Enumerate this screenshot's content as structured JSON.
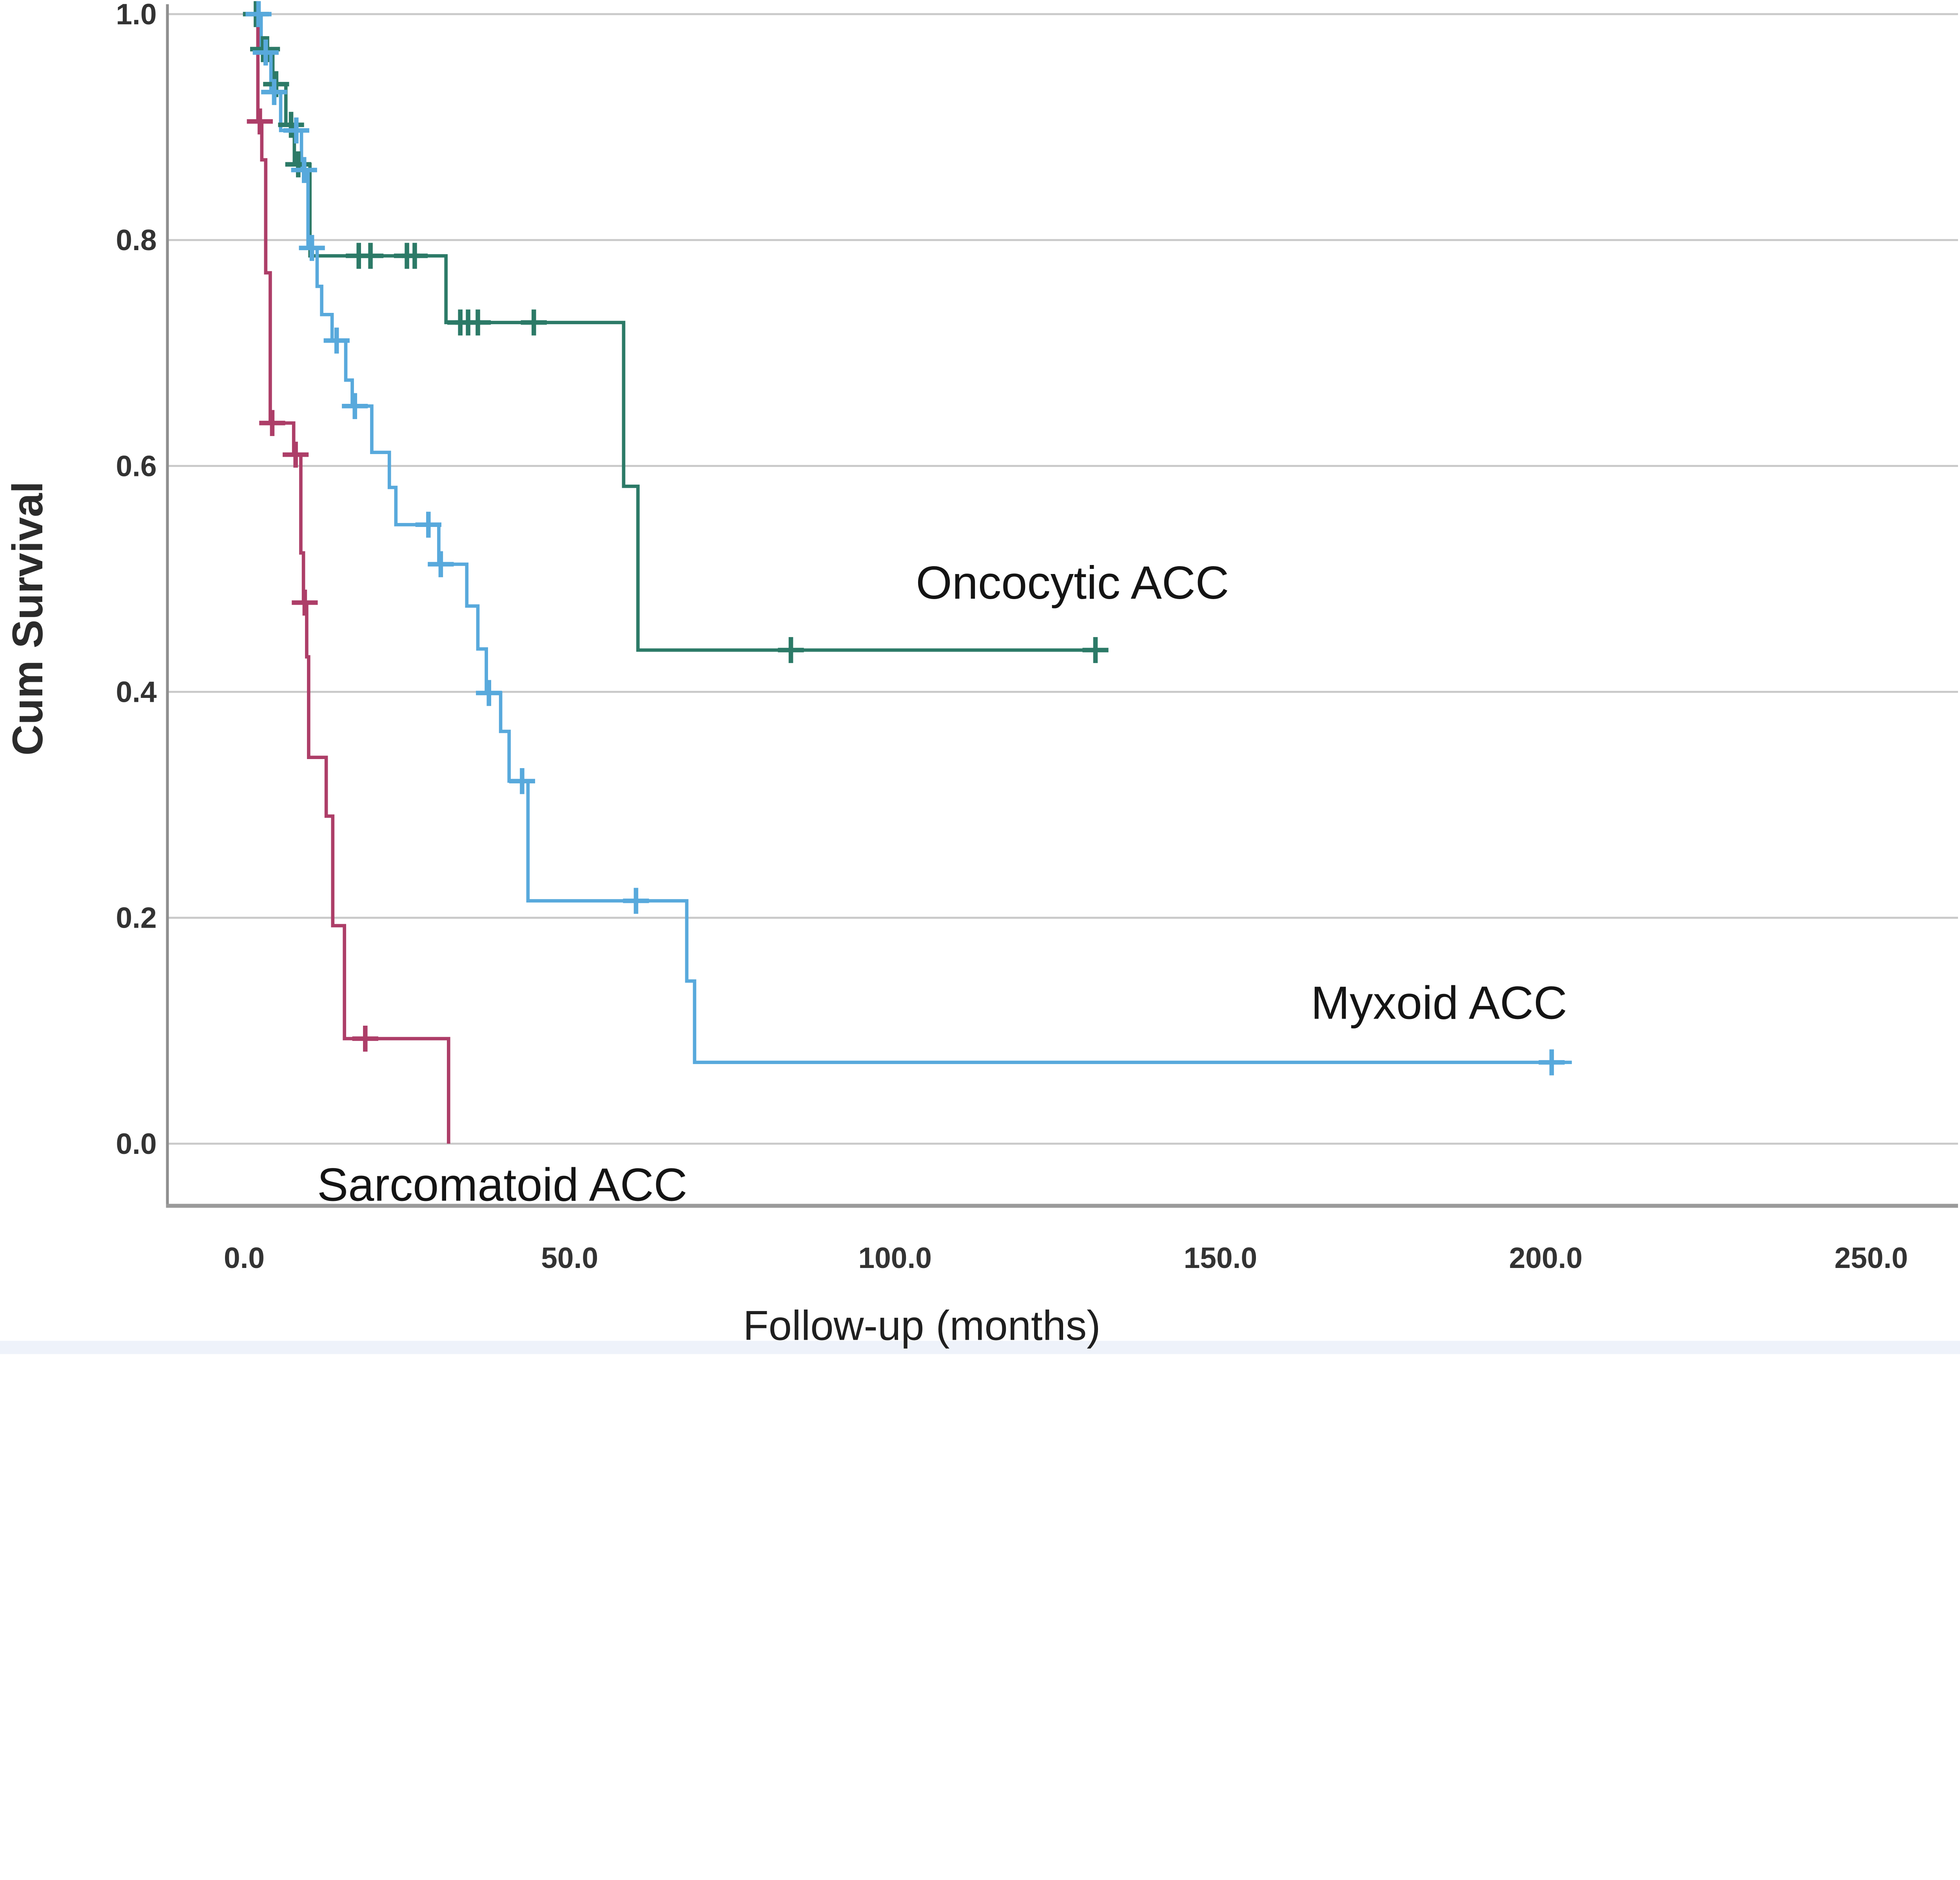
{
  "page": {
    "background_color": "#ffffff",
    "footer_strip_color": "#eef2fa"
  },
  "chart_data": {
    "type": "line",
    "subtype": "kaplan-meier-step-survival",
    "title": "",
    "xlabel": "Follow-up (months)",
    "ylabel": "Cum Survival",
    "grid": "horizontal",
    "legend_position": "inline-annotations",
    "xlim_months": [
      0,
      250
    ],
    "ylim": [
      0.0,
      1.0
    ],
    "x_ticks": {
      "values": [
        0,
        50,
        100,
        150,
        200,
        250
      ],
      "labels": [
        "0.0",
        "50.0",
        "100.0",
        "150.0",
        "200.0",
        "250.0"
      ]
    },
    "y_ticks": {
      "values": [
        1.0,
        0.8,
        0.6,
        0.4,
        0.2,
        0.0
      ],
      "labels": [
        "1.0",
        "0.8",
        "0.6",
        "0.4",
        "0.2",
        "0.0"
      ]
    },
    "colors": {
      "grid": "#c9c9c9",
      "axis": "#9a9a9a",
      "text": "#2b2b2b"
    },
    "series": [
      {
        "name": "Oncocytic ACC",
        "color": "#2c7a67",
        "annotation": {
          "t": 103.2,
          "s": 0.497,
          "anchor": "start"
        },
        "steps": [
          [
            1.5,
            1.0
          ],
          [
            2.3,
            0.969
          ],
          [
            4.4,
            0.938
          ],
          [
            6.4,
            0.902
          ],
          [
            7.7,
            0.867
          ],
          [
            10.1,
            0.786
          ],
          [
            31.0,
            0.727
          ],
          [
            58.3,
            0.582
          ],
          [
            60.5,
            0.437
          ]
        ],
        "end_month": 132.6,
        "censors": [
          [
            1.8,
            1.0
          ],
          [
            2.9,
            0.969
          ],
          [
            3.5,
            0.969
          ],
          [
            4.9,
            0.938
          ],
          [
            7.2,
            0.902
          ],
          [
            8.3,
            0.867
          ],
          [
            17.6,
            0.786
          ],
          [
            19.4,
            0.786
          ],
          [
            25.0,
            0.786
          ],
          [
            26.2,
            0.786
          ],
          [
            33.2,
            0.727
          ],
          [
            34.4,
            0.727
          ],
          [
            35.9,
            0.727
          ],
          [
            44.5,
            0.727
          ],
          [
            84.0,
            0.437
          ],
          [
            130.8,
            0.437
          ]
        ]
      },
      {
        "name": "Myxoid ACC",
        "color": "#58a9dc",
        "annotation": {
          "t": 163.9,
          "s": 0.125,
          "anchor": "start"
        },
        "steps": [
          [
            1.8,
            1.0
          ],
          [
            2.6,
            0.966
          ],
          [
            4.1,
            0.931
          ],
          [
            5.6,
            0.897
          ],
          [
            8.8,
            0.862
          ],
          [
            9.8,
            0.793
          ],
          [
            11.2,
            0.759
          ],
          [
            11.9,
            0.734
          ],
          [
            13.5,
            0.711
          ],
          [
            15.6,
            0.676
          ],
          [
            16.6,
            0.653
          ],
          [
            19.6,
            0.612
          ],
          [
            22.3,
            0.581
          ],
          [
            23.3,
            0.548
          ],
          [
            29.9,
            0.513
          ],
          [
            34.2,
            0.476
          ],
          [
            35.9,
            0.438
          ],
          [
            37.2,
            0.399
          ],
          [
            39.4,
            0.365
          ],
          [
            40.7,
            0.321
          ],
          [
            43.6,
            0.215
          ],
          [
            68.0,
            0.144
          ],
          [
            69.2,
            0.072
          ]
        ],
        "end_month": 204.0,
        "censors": [
          [
            2.2,
            1.0
          ],
          [
            3.3,
            0.966
          ],
          [
            4.6,
            0.931
          ],
          [
            8.0,
            0.897
          ],
          [
            9.2,
            0.862
          ],
          [
            10.4,
            0.793
          ],
          [
            14.2,
            0.711
          ],
          [
            17.0,
            0.653
          ],
          [
            28.3,
            0.548
          ],
          [
            30.2,
            0.513
          ],
          [
            37.6,
            0.399
          ],
          [
            42.7,
            0.321
          ],
          [
            60.2,
            0.215
          ],
          [
            200.9,
            0.072
          ]
        ]
      },
      {
        "name": "Sarcomatoid ACC",
        "color": "#ad3e68",
        "annotation": {
          "t": 11.2,
          "s": -0.036,
          "anchor": "start"
        },
        "steps": [
          [
            1.7,
            1.0
          ],
          [
            2.1,
            0.905
          ],
          [
            2.7,
            0.871
          ],
          [
            3.3,
            0.771
          ],
          [
            4.0,
            0.638
          ],
          [
            7.6,
            0.61
          ],
          [
            8.7,
            0.523
          ],
          [
            9.1,
            0.479
          ],
          [
            9.6,
            0.431
          ],
          [
            9.9,
            0.342
          ],
          [
            12.6,
            0.29
          ],
          [
            13.6,
            0.193
          ],
          [
            15.4,
            0.093
          ],
          [
            31.4,
            0.0
          ]
        ],
        "end_month": 31.4,
        "censors": [
          [
            2.4,
            0.905
          ],
          [
            4.3,
            0.638
          ],
          [
            7.9,
            0.61
          ],
          [
            9.3,
            0.479
          ],
          [
            18.6,
            0.093
          ]
        ]
      }
    ]
  }
}
